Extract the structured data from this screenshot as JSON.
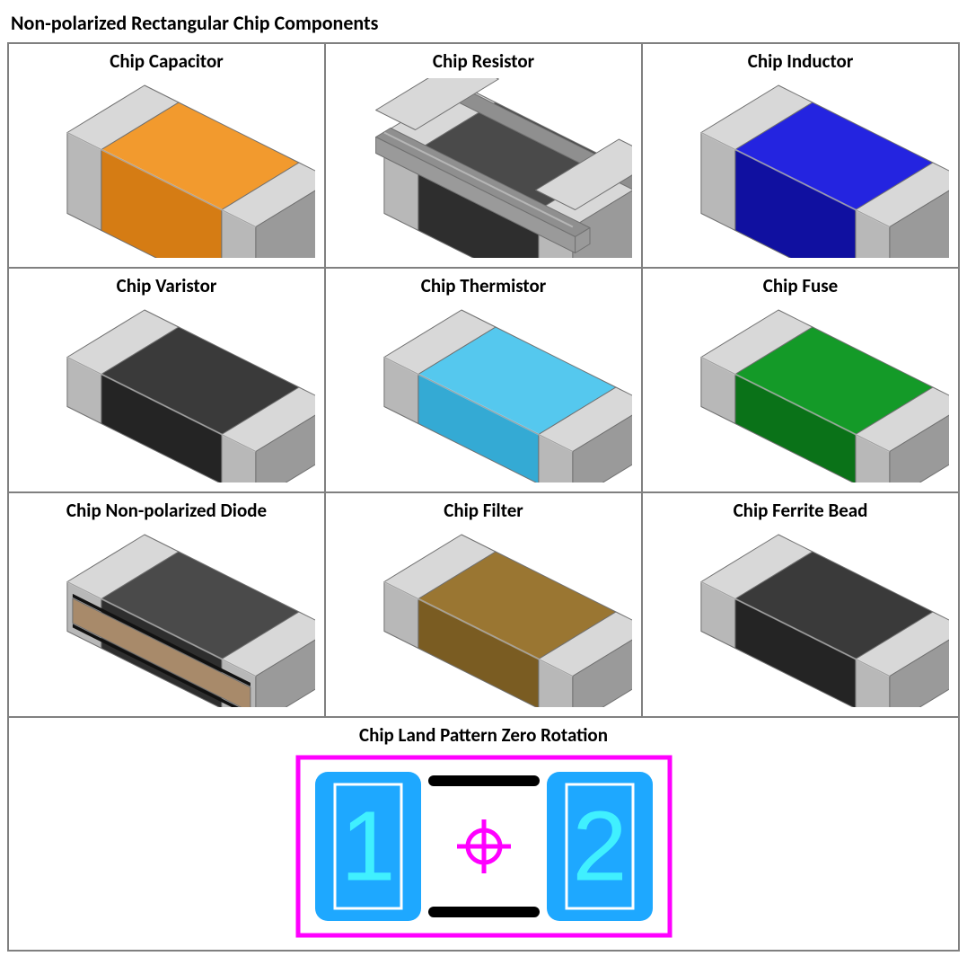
{
  "title": "Non-polarized Rectangular Chip Components",
  "components": [
    {
      "label": "Chip Capacitor",
      "body": "#e88b1c",
      "top": "#f29a2e",
      "front": "#d57c14",
      "height": "tall",
      "style": "plain"
    },
    {
      "label": "Chip Resistor",
      "body": "#3a3a3a",
      "top": "#4a4a4a",
      "front": "#2e2e2e",
      "height": "tall",
      "style": "resistor"
    },
    {
      "label": "Chip Inductor",
      "body": "#1818c0",
      "top": "#2424e0",
      "front": "#1010a0",
      "height": "tall",
      "style": "plain"
    },
    {
      "label": "Chip Varistor",
      "body": "#2e2e2e",
      "top": "#3a3a3a",
      "front": "#242424",
      "height": "short",
      "style": "plain"
    },
    {
      "label": "Chip Thermistor",
      "body": "#3fbde8",
      "top": "#55c8ee",
      "front": "#34aad4",
      "height": "short",
      "style": "plain"
    },
    {
      "label": "Chip Fuse",
      "body": "#0e8a1e",
      "top": "#149a28",
      "front": "#0a7218",
      "height": "short",
      "style": "plain"
    },
    {
      "label": "Chip Non-polarized Diode",
      "body": "#3a3a3a",
      "top": "#4a4a4a",
      "front": "#2e2e2e",
      "height": "short",
      "style": "diode",
      "stripe": "#a88a6a"
    },
    {
      "label": "Chip Filter",
      "body": "#8c6a2a",
      "top": "#9a7632",
      "front": "#7a5c22",
      "height": "short",
      "style": "plain"
    },
    {
      "label": "Chip Ferrite Bead",
      "body": "#2e2e2e",
      "top": "#3a3a3a",
      "front": "#242424",
      "height": "short",
      "style": "plain"
    }
  ],
  "land": {
    "label": "Chip Land Pattern Zero Rotation",
    "outline": "#ff00ff",
    "pad_fill": "#1ea8ff",
    "pad_text": "#40f0ff",
    "pad_stroke": "#ffffff",
    "bar": "#000000",
    "center_mark": "#ff00ff",
    "numbers": [
      "1",
      "2"
    ]
  },
  "palette": {
    "term_light": "#d8d8d8",
    "term_mid": "#b8b8b8",
    "term_dark": "#9a9a9a",
    "edge": "#707070",
    "res_rail": "#8f8f8f"
  }
}
